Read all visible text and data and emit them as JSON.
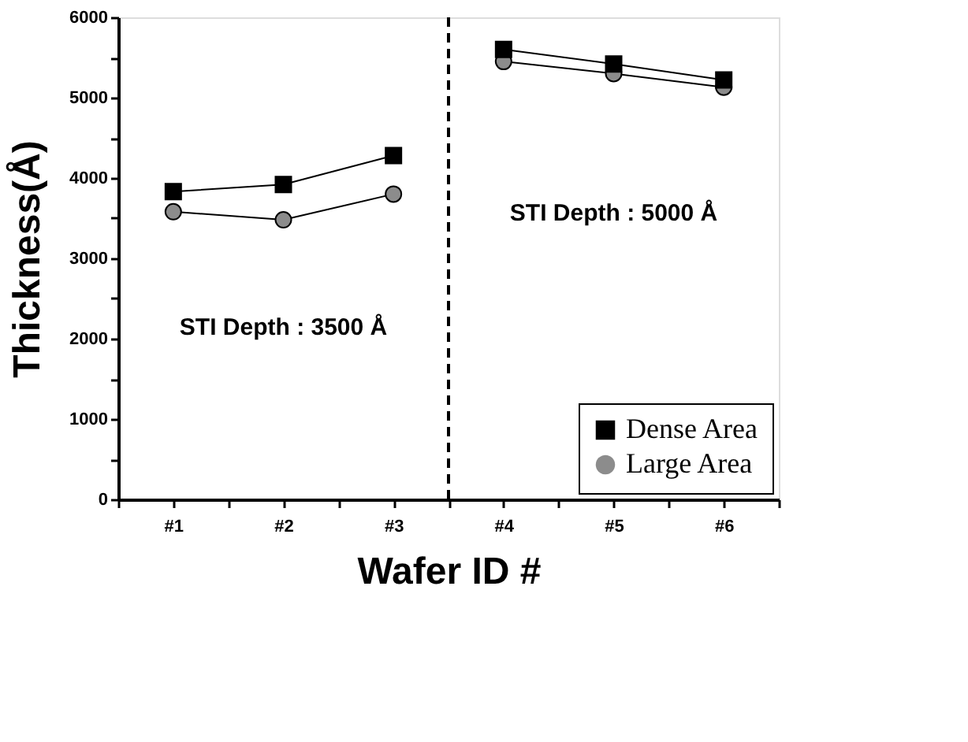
{
  "chart_data": {
    "type": "line",
    "xlabel": "Wafer ID #",
    "ylabel": "Thickness(Å)",
    "x": [
      1,
      2,
      3,
      4,
      5,
      6
    ],
    "series": [
      {
        "name": "Dense Area",
        "color": "#000000",
        "marker": "square",
        "values": [
          3830,
          3920,
          4280,
          5600,
          5420,
          5220
        ]
      },
      {
        "name": "Large Area",
        "color": "#8c8c8c",
        "marker": "circle",
        "values": [
          3580,
          3480,
          3800,
          5450,
          5300,
          5130
        ]
      }
    ],
    "xlim": [
      0.5,
      6.5
    ],
    "xticks": [
      {
        "value": 0.5,
        "label": null
      },
      {
        "value": 1,
        "label": "#1"
      },
      {
        "value": 1.5,
        "label": null
      },
      {
        "value": 2,
        "label": "#2"
      },
      {
        "value": 2.5,
        "label": null
      },
      {
        "value": 3,
        "label": "#3"
      },
      {
        "value": 3.5,
        "label": null
      },
      {
        "value": 4,
        "label": "#4"
      },
      {
        "value": 4.5,
        "label": null
      },
      {
        "value": 5,
        "label": "#5"
      },
      {
        "value": 5.5,
        "label": null
      },
      {
        "value": 6,
        "label": "#6"
      },
      {
        "value": 6.5,
        "label": null
      }
    ],
    "ylim": [
      0,
      6000
    ],
    "yticks": [
      0,
      {
        "value": 500,
        "label": null
      },
      1000,
      {
        "value": 1500,
        "label": null
      },
      2000,
      {
        "value": 2500,
        "label": null
      },
      3000,
      {
        "value": 3500,
        "label": null
      },
      4000,
      {
        "value": 4500,
        "label": null
      },
      5000,
      {
        "value": 5500,
        "label": null
      },
      6000
    ],
    "ref_lines": [
      {
        "axis": "x",
        "value": 3.5,
        "label": null,
        "color": "#000000",
        "line_style": "dashed"
      }
    ],
    "annotations": [
      "STI Depth : 3500 Å",
      "STI Depth : 5000 Å"
    ],
    "legend": "bottom right",
    "grid": false,
    "line_style": "solid"
  }
}
